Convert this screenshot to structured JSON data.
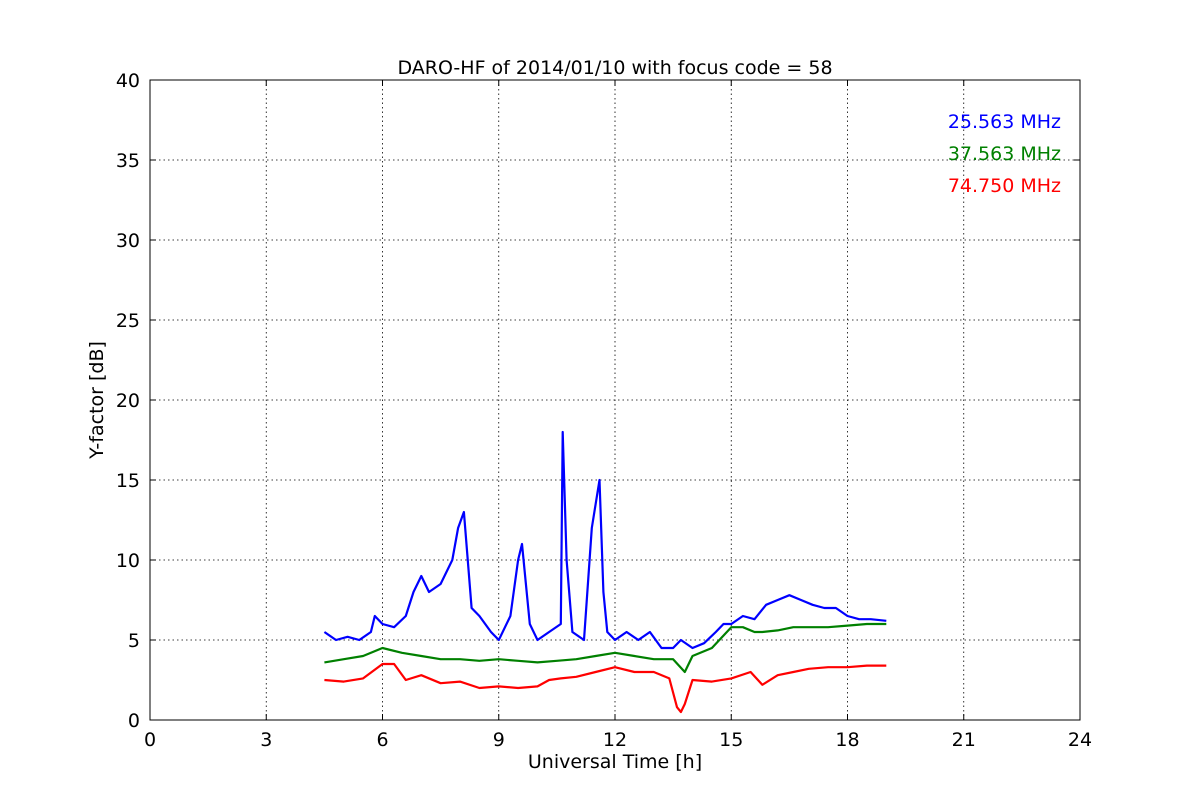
{
  "chart_data": {
    "type": "line",
    "title": "DARO-HF of 2014/01/10 with focus code = 58",
    "xlabel": "Universal Time [h]",
    "ylabel": "Y-factor [dB]",
    "xlim": [
      0,
      24
    ],
    "ylim": [
      0,
      40
    ],
    "xticks": [
      "0",
      "3",
      "6",
      "9",
      "12",
      "15",
      "18",
      "21",
      "24"
    ],
    "yticks": [
      "0",
      "5",
      "10",
      "15",
      "20",
      "25",
      "30",
      "35",
      "40"
    ],
    "grid": true,
    "legend_position": "top-right",
    "series": [
      {
        "name": "25.563 MHz",
        "color": "#0000ff",
        "x": [
          4.5,
          4.8,
          5.1,
          5.4,
          5.7,
          5.8,
          6.0,
          6.3,
          6.6,
          6.8,
          7.0,
          7.2,
          7.5,
          7.8,
          7.95,
          8.1,
          8.3,
          8.5,
          8.8,
          9.0,
          9.3,
          9.5,
          9.6,
          9.8,
          10.0,
          10.3,
          10.6,
          10.65,
          10.75,
          10.9,
          11.2,
          11.4,
          11.6,
          11.7,
          11.8,
          12.0,
          12.3,
          12.6,
          12.9,
          13.2,
          13.5,
          13.7,
          14.0,
          14.3,
          14.6,
          14.8,
          15.0,
          15.3,
          15.6,
          15.9,
          16.2,
          16.5,
          16.8,
          17.1,
          17.4,
          17.7,
          18.0,
          18.3,
          18.6,
          19.0
        ],
        "y": [
          5.5,
          5.0,
          5.2,
          5.0,
          5.5,
          6.5,
          6.0,
          5.8,
          6.5,
          8.0,
          9.0,
          8.0,
          8.5,
          10.0,
          12.0,
          13.0,
          7.0,
          6.5,
          5.5,
          5.0,
          6.5,
          10.0,
          11.0,
          6.0,
          5.0,
          5.5,
          6.0,
          18.0,
          10.0,
          5.5,
          5.0,
          12.0,
          15.0,
          8.0,
          5.5,
          5.0,
          5.5,
          5.0,
          5.5,
          4.5,
          4.5,
          5.0,
          4.5,
          4.8,
          5.5,
          6.0,
          6.0,
          6.5,
          6.3,
          7.2,
          7.5,
          7.8,
          7.5,
          7.2,
          7.0,
          7.0,
          6.5,
          6.3,
          6.3,
          6.2
        ]
      },
      {
        "name": "37.563 MHz",
        "color": "#008000",
        "x": [
          4.5,
          5.0,
          5.5,
          6.0,
          6.5,
          7.0,
          7.5,
          8.0,
          8.5,
          9.0,
          9.5,
          10.0,
          10.5,
          11.0,
          11.5,
          12.0,
          12.5,
          13.0,
          13.5,
          13.8,
          14.0,
          14.5,
          15.0,
          15.3,
          15.6,
          15.8,
          16.2,
          16.6,
          17.0,
          17.5,
          18.0,
          18.5,
          19.0
        ],
        "y": [
          3.6,
          3.8,
          4.0,
          4.5,
          4.2,
          4.0,
          3.8,
          3.8,
          3.7,
          3.8,
          3.7,
          3.6,
          3.7,
          3.8,
          4.0,
          4.2,
          4.0,
          3.8,
          3.8,
          3.0,
          4.0,
          4.5,
          5.8,
          5.8,
          5.5,
          5.5,
          5.6,
          5.8,
          5.8,
          5.8,
          5.9,
          6.0,
          6.0
        ]
      },
      {
        "name": "74.750 MHz",
        "color": "#ff0000",
        "x": [
          4.5,
          5.0,
          5.5,
          6.0,
          6.3,
          6.6,
          7.0,
          7.5,
          8.0,
          8.5,
          9.0,
          9.5,
          10.0,
          10.3,
          10.6,
          11.0,
          11.5,
          12.0,
          12.5,
          13.0,
          13.4,
          13.6,
          13.7,
          13.8,
          14.0,
          14.5,
          15.0,
          15.5,
          15.8,
          16.2,
          16.6,
          17.0,
          17.5,
          18.0,
          18.5,
          19.0
        ],
        "y": [
          2.5,
          2.4,
          2.6,
          3.5,
          3.5,
          2.5,
          2.8,
          2.3,
          2.4,
          2.0,
          2.1,
          2.0,
          2.1,
          2.5,
          2.6,
          2.7,
          3.0,
          3.3,
          3.0,
          3.0,
          2.6,
          0.8,
          0.5,
          1.0,
          2.5,
          2.4,
          2.6,
          3.0,
          2.2,
          2.8,
          3.0,
          3.2,
          3.3,
          3.3,
          3.4,
          3.4
        ]
      }
    ]
  }
}
